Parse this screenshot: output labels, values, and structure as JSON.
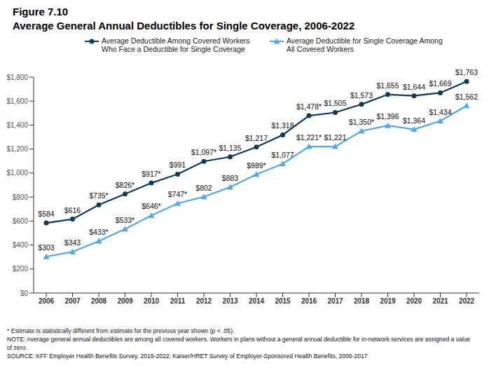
{
  "chart_data": {
    "type": "line",
    "title": "Figure 7.10",
    "subtitle": "Average General Annual Deductibles for Single Coverage, 2006-2022",
    "categories": [
      "2006",
      "2007",
      "2008",
      "2009",
      "2010",
      "2011",
      "2012",
      "2013",
      "2014",
      "2015",
      "2016",
      "2017",
      "2018",
      "2019",
      "2020",
      "2021",
      "2022"
    ],
    "series": [
      {
        "name": "Average Deductible Among Covered Workers Who Face a Deductible for Single Coverage",
        "color": "#0b3c5d",
        "marker": "circle",
        "values": [
          584,
          616,
          735,
          826,
          917,
          991,
          1097,
          1135,
          1217,
          1318,
          1478,
          1505,
          1573,
          1655,
          1644,
          1669,
          1763
        ],
        "value_labels": [
          "$584",
          "$616",
          "$735*",
          "$826*",
          "$917*",
          "$991",
          "$1,097*",
          "$1,135",
          "$1,217",
          "$1,318",
          "$1,478*",
          "$1,505",
          "$1,573",
          "$1,655",
          "$1,644",
          "$1,669",
          "$1,763"
        ]
      },
      {
        "name": "Average Deductible for Single Coverage Among All Covered Workers",
        "color": "#4baaf0",
        "marker": "triangle",
        "values": [
          303,
          343,
          433,
          533,
          646,
          747,
          802,
          883,
          989,
          1077,
          1221,
          1221,
          1350,
          1396,
          1364,
          1434,
          1562
        ],
        "value_labels": [
          "$303",
          "$343",
          "$433*",
          "$533*",
          "$646*",
          "$747*",
          "$802",
          "$883",
          "$989*",
          "$1,077",
          "$1,221*",
          "$1,221",
          "$1,350*",
          "$1,396",
          "$1,364",
          "$1,434",
          "$1,562"
        ]
      }
    ],
    "ylim": [
      0,
      1800
    ],
    "yticks": [
      {
        "value": 0,
        "label": "$0"
      },
      {
        "value": 200,
        "label": "$200"
      },
      {
        "value": 400,
        "label": "$400"
      },
      {
        "value": 600,
        "label": "$600"
      },
      {
        "value": 800,
        "label": "$800"
      },
      {
        "value": 1000,
        "label": "$1,000"
      },
      {
        "value": 1200,
        "label": "$1,200"
      },
      {
        "value": 1400,
        "label": "$1,400"
      },
      {
        "value": 1600,
        "label": "$1,600"
      },
      {
        "value": 1800,
        "label": "$1,800"
      }
    ],
    "grid": false,
    "legend": "top",
    "data_labels": true,
    "annotations": [
      "* Estimate is statistically different from estimate for the previous year shown (p < .05).",
      "NOTE: Average general annual deductibles are among all covered workers. Workers in plans without a general annual deductible for in-network services are assigned a value of zero.",
      "SOURCE: KFF Employer Health Benefits Survey, 2018-2022; Kaiser/HRET Survey of Employer-Sponsored Health Benefits, 2006-2017"
    ]
  }
}
